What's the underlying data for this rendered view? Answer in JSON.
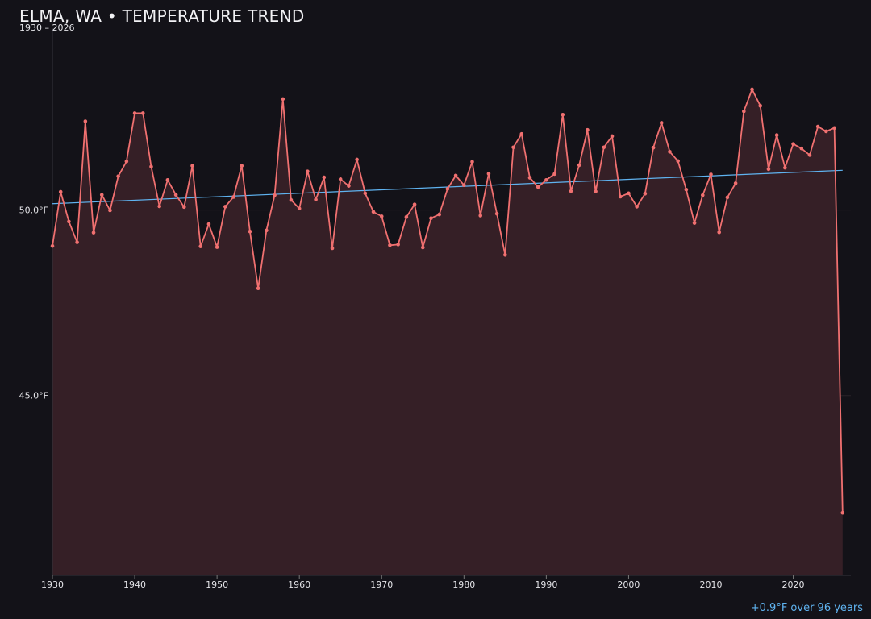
{
  "chart_data": {
    "type": "line",
    "title": "ELMA, WA • TEMPERATURE TREND",
    "subtitle": "1930 – 2026",
    "annotation": "+0.9°F over 96 years",
    "xlabel": "",
    "ylabel": "",
    "xlim": [
      1930,
      2027
    ],
    "ylim": [
      40.15,
      54.9
    ],
    "x_ticks": [
      1930,
      1940,
      1950,
      1960,
      1970,
      1980,
      1990,
      2000,
      2010,
      2020
    ],
    "y_ticks": [
      {
        "value": 45.0,
        "label": "45.0°F"
      },
      {
        "value": 50.0,
        "label": "50.0°F"
      }
    ],
    "grid": true,
    "colors": {
      "background": "#131218",
      "line": "#f07070",
      "fill": "#351f26",
      "trend": "#5fb3f0",
      "grid": "#2a2228",
      "axis": "#34343c"
    },
    "series": [
      {
        "x": [
          1930,
          1931,
          1932,
          1933,
          1934,
          1935,
          1936,
          1937,
          1938,
          1939,
          1940,
          1941,
          1942,
          1943,
          1944,
          1945,
          1946,
          1947,
          1948,
          1949,
          1950,
          1951,
          1952,
          1953,
          1954,
          1955,
          1956,
          1957,
          1958,
          1959,
          1960,
          1961,
          1962,
          1963,
          1964,
          1965,
          1966,
          1967,
          1968,
          1969,
          1970,
          1971,
          1972,
          1973,
          1974,
          1975,
          1976,
          1977,
          1978,
          1979,
          1980,
          1981,
          1982,
          1983,
          1984,
          1985,
          1986,
          1987,
          1988,
          1989,
          1990,
          1991,
          1992,
          1993,
          1994,
          1995,
          1996,
          1997,
          1998,
          1999,
          2000,
          2001,
          2002,
          2003,
          2004,
          2005,
          2006,
          2007,
          2008,
          2009,
          2010,
          2011,
          2012,
          2013,
          2014,
          2015,
          2016,
          2017,
          2018,
          2019,
          2020,
          2021,
          2022,
          2023,
          2024,
          2025,
          2026
        ],
        "values": [
          49.03,
          50.49,
          49.69,
          49.13,
          52.39,
          49.39,
          50.41,
          49.99,
          50.91,
          51.31,
          52.61,
          52.61,
          51.17,
          50.1,
          50.81,
          50.41,
          50.08,
          51.19,
          49.02,
          49.62,
          49.0,
          50.09,
          50.35,
          51.19,
          49.42,
          47.89,
          49.45,
          50.4,
          52.99,
          50.27,
          50.04,
          51.04,
          50.28,
          50.88,
          48.97,
          50.83,
          50.65,
          51.36,
          50.45,
          49.95,
          49.83,
          49.05,
          49.07,
          49.81,
          50.15,
          48.99,
          49.78,
          49.88,
          50.57,
          50.93,
          50.67,
          51.3,
          49.85,
          50.98,
          49.9,
          48.79,
          51.69,
          52.05,
          50.87,
          50.62,
          50.81,
          50.97,
          52.57,
          50.51,
          51.21,
          52.16,
          50.5,
          51.69,
          51.99,
          50.36,
          50.45,
          50.09,
          50.44,
          51.68,
          52.35,
          51.57,
          51.32,
          50.55,
          49.65,
          50.4,
          50.96,
          49.4,
          50.34,
          50.72,
          52.66,
          53.25,
          52.81,
          51.1,
          52.02,
          51.14,
          51.78,
          51.66,
          51.48,
          52.25,
          52.12,
          52.21,
          41.84
        ]
      }
    ],
    "trend": {
      "x": [
        1930,
        2026
      ],
      "values": [
        50.17,
        51.07
      ]
    }
  }
}
